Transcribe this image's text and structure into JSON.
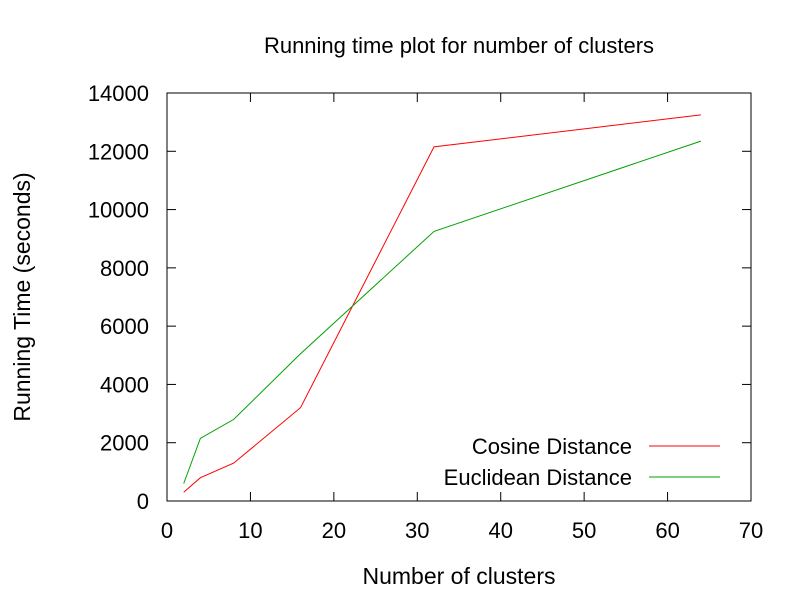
{
  "chart_data": {
    "type": "line",
    "title": "Running time plot for number of clusters",
    "xlabel": "Number of clusters",
    "ylabel": "Running Time (seconds)",
    "xlim": [
      0,
      70
    ],
    "ylim": [
      0,
      14000
    ],
    "xticks": [
      0,
      10,
      20,
      30,
      40,
      50,
      60,
      70
    ],
    "yticks": [
      0,
      2000,
      4000,
      6000,
      8000,
      10000,
      12000,
      14000
    ],
    "grid": false,
    "legend_position": "bottom-right",
    "x": [
      2,
      4,
      8,
      16,
      32,
      64
    ],
    "series": [
      {
        "name": "Cosine Distance",
        "color": "#ff0000",
        "values": [
          300,
          800,
          1300,
          3200,
          12150,
          13250
        ]
      },
      {
        "name": "Euclidean Distance",
        "color": "#00a000",
        "values": [
          600,
          2150,
          2800,
          5050,
          9250,
          12350
        ]
      }
    ]
  }
}
